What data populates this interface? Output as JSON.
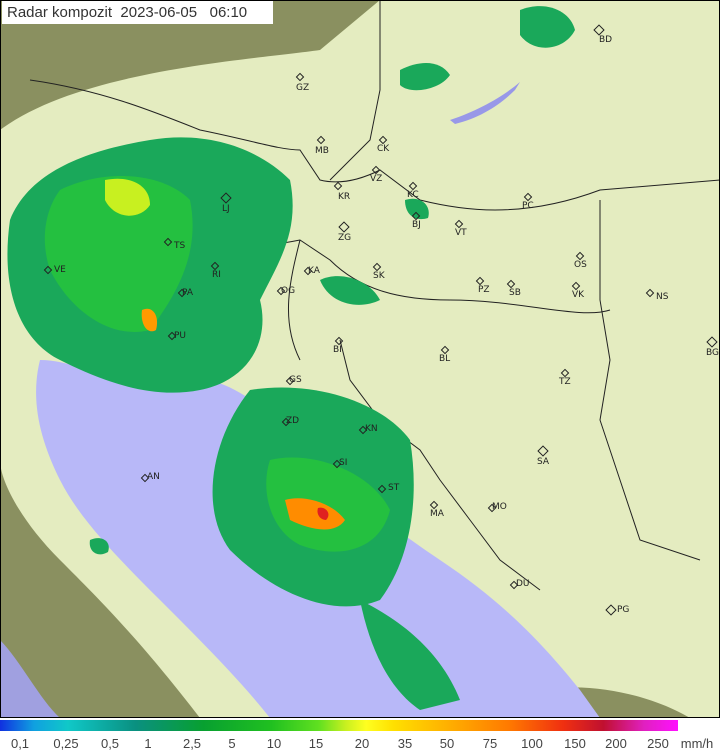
{
  "title": "Radar kompozit  2023-06-05   06:10",
  "legend": {
    "labels": [
      "0,1",
      "0,25",
      "0,5",
      "1",
      "2,5",
      "5",
      "10",
      "15",
      "20",
      "35",
      "50",
      "75",
      "100",
      "150",
      "200",
      "250"
    ],
    "unit": "mm/h",
    "colors": [
      "#1030e0",
      "#10c8c8",
      "#08a030",
      "#60e020",
      "#ffff20",
      "#ffb000",
      "#f03010",
      "#c01030",
      "#ff10ff"
    ]
  },
  "colors": {
    "sea": "#b8b8f8",
    "land": "#d8d0a0",
    "radar_range": "#e4f0c8",
    "outside": "#8a9060"
  },
  "cities": [
    {
      "code": "BD",
      "capital": true
    },
    {
      "code": "GZ"
    },
    {
      "code": "MB"
    },
    {
      "code": "CK"
    },
    {
      "code": "VZ"
    },
    {
      "code": "KR"
    },
    {
      "code": "LJ",
      "capital": true
    },
    {
      "code": "KC"
    },
    {
      "code": "BJ"
    },
    {
      "code": "PC"
    },
    {
      "code": "TS"
    },
    {
      "code": "ZG",
      "capital": true
    },
    {
      "code": "VT"
    },
    {
      "code": "VE"
    },
    {
      "code": "RI"
    },
    {
      "code": "KA"
    },
    {
      "code": "SK"
    },
    {
      "code": "OS"
    },
    {
      "code": "PA"
    },
    {
      "code": "PZ"
    },
    {
      "code": "SB"
    },
    {
      "code": "VK"
    },
    {
      "code": "NS"
    },
    {
      "code": "OG"
    },
    {
      "code": "PU"
    },
    {
      "code": "BI"
    },
    {
      "code": "BL"
    },
    {
      "code": "BG",
      "capital": true
    },
    {
      "code": "TZ"
    },
    {
      "code": "GS"
    },
    {
      "code": "ZD"
    },
    {
      "code": "KN"
    },
    {
      "code": "SA",
      "capital": true
    },
    {
      "code": "SI"
    },
    {
      "code": "AN"
    },
    {
      "code": "ST"
    },
    {
      "code": "MA"
    },
    {
      "code": "MO"
    },
    {
      "code": "DU"
    },
    {
      "code": "PG",
      "capital": true
    }
  ]
}
